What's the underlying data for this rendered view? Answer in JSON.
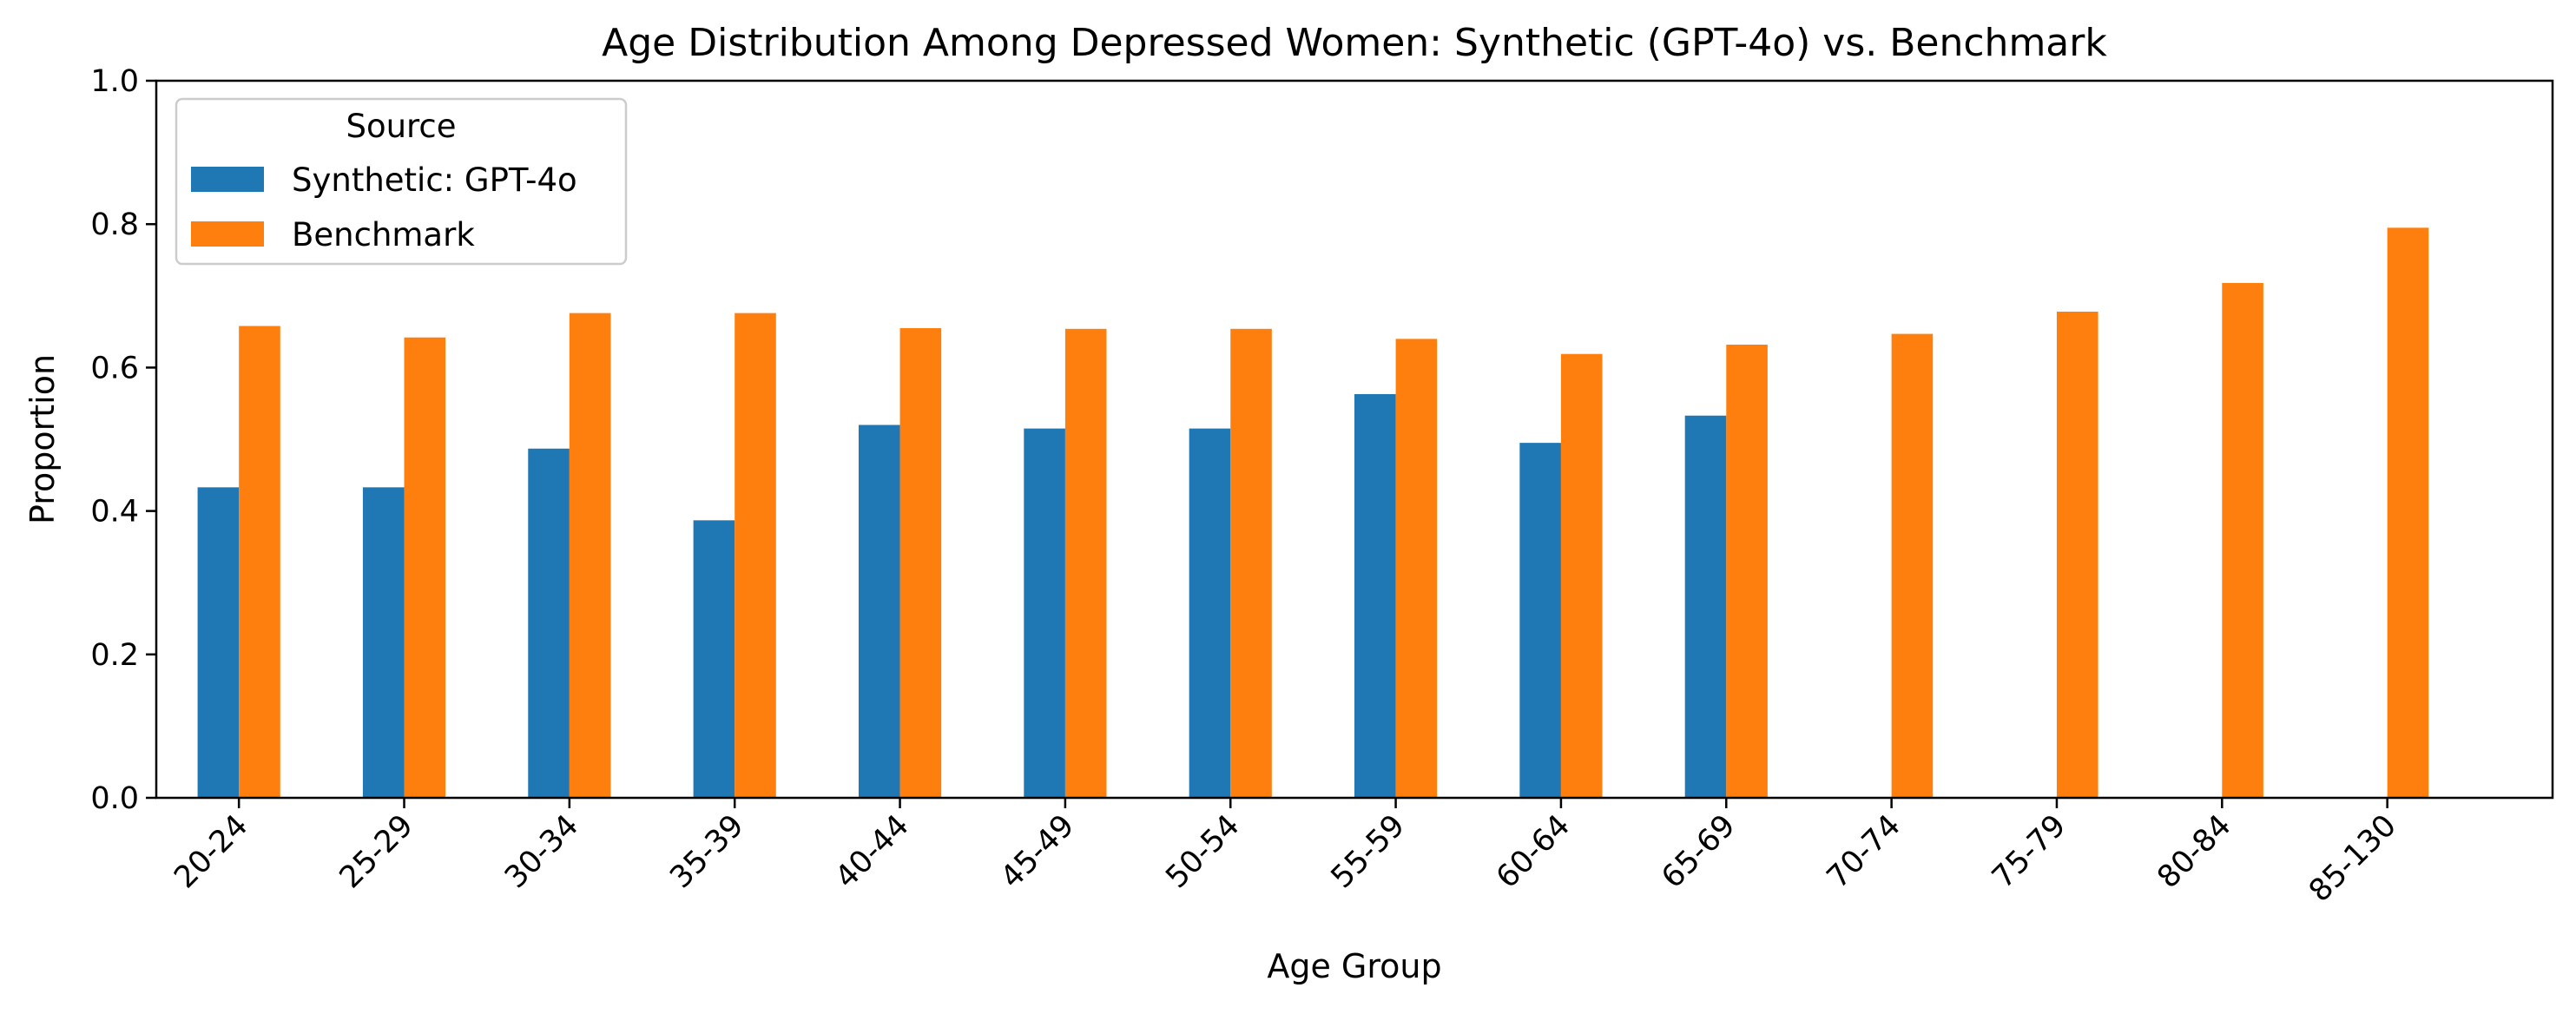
{
  "chart_data": {
    "type": "bar",
    "title": "Age Distribution Among Depressed Women: Synthetic (GPT-4o) vs. Benchmark",
    "xlabel": "Age Group",
    "ylabel": "Proportion",
    "ylim": [
      0,
      1.0
    ],
    "yticks": [
      "0.0",
      "0.2",
      "0.4",
      "0.6",
      "0.8",
      "1.0"
    ],
    "categories": [
      "20-24",
      "25-29",
      "30-34",
      "35-39",
      "40-44",
      "45-49",
      "50-54",
      "55-59",
      "60-64",
      "65-69",
      "70-74",
      "75-79",
      "80-84",
      "85-130"
    ],
    "series": [
      {
        "name": "Synthetic: GPT-4o",
        "color": "#1f77b4",
        "values": [
          0.433,
          0.433,
          0.487,
          0.387,
          0.52,
          0.515,
          0.515,
          0.563,
          0.495,
          0.533,
          null,
          null,
          null,
          null
        ]
      },
      {
        "name": "Benchmark",
        "color": "#ff7f0e",
        "values": [
          0.658,
          0.642,
          0.676,
          0.676,
          0.655,
          0.654,
          0.654,
          0.64,
          0.619,
          0.632,
          0.647,
          0.678,
          0.718,
          0.795
        ]
      }
    ],
    "legend": {
      "title": "Source",
      "placement": "top-left"
    },
    "grid": false,
    "xtick_rotation": 45
  }
}
